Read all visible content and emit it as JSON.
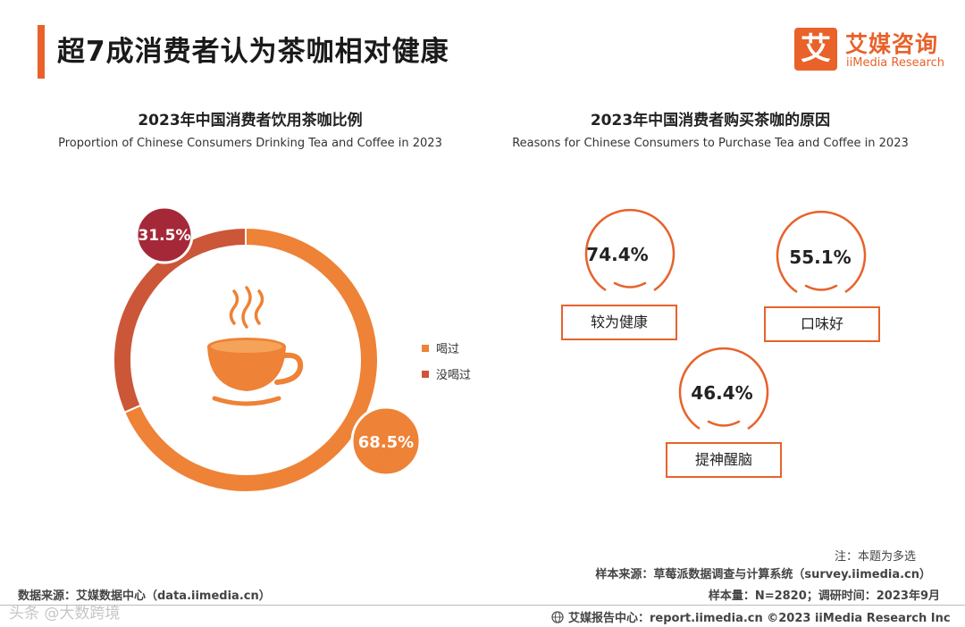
{
  "header": {
    "title": "超7成消费者认为茶咖相对健康",
    "logo_mark": "艾",
    "logo_cn": "艾媒咨询",
    "logo_en": "iiMedia Research"
  },
  "chart_data": [
    {
      "type": "pie",
      "variant": "donut",
      "title": "2023年中国消费者饮用茶咖比例",
      "subtitle": "Proportion of Chinese Consumers Drinking Tea and Coffee in 2023",
      "categories": [
        "喝过",
        "没喝过"
      ],
      "values": [
        68.5,
        31.5
      ],
      "labels": [
        "68.5%",
        "31.5%"
      ],
      "colors": [
        "#ee8236",
        "#cc5638"
      ],
      "badge_colors": [
        "#ee8236",
        "#a52838"
      ],
      "legend_position": "right",
      "center_icon": "coffee-cup-icon"
    },
    {
      "type": "bar",
      "variant": "circle-badges",
      "title": "2023年中国消费者购买茶咖的原因",
      "subtitle": "Reasons for Chinese Consumers to Purchase Tea and Coffee in 2023",
      "categories": [
        "较为健康",
        "口味好",
        "提神醒脑"
      ],
      "values": [
        74.4,
        55.1,
        46.4
      ],
      "labels": [
        "74.4%",
        "55.1%",
        "46.4%"
      ],
      "unit": "%",
      "accent": "#e8622a"
    }
  ],
  "footer": {
    "note": "注：本题为多选",
    "sample_source": "样本来源：草莓派数据调查与计算系统（survey.iimedia.cn）",
    "sample_size": "样本量：N=2820；调研时间：2023年9月",
    "data_source": "数据来源：艾媒数据中心（data.iimedia.cn）",
    "report_center": "艾媒报告中心：report.iimedia.cn  ©2023  iiMedia Research  Inc",
    "watermark": "头条 @大数跨境"
  }
}
